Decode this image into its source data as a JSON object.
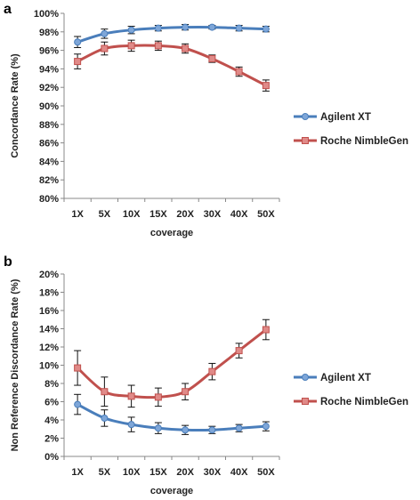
{
  "chart_data": [
    {
      "type": "line",
      "panel_label": "a",
      "categories": [
        "1X",
        "5X",
        "10X",
        "15X",
        "20X",
        "30X",
        "40X",
        "50X"
      ],
      "xlabel": "coverage",
      "ylabel": "Concordance Rate (%)",
      "ylim": [
        80,
        100
      ],
      "yticks": [
        80,
        82,
        84,
        86,
        88,
        90,
        92,
        94,
        96,
        98,
        100
      ],
      "ytick_format": "percent",
      "legend_position": "right",
      "series": [
        {
          "name": "Agilent XT",
          "color": "#4a7ebb",
          "marker": "circle",
          "values": [
            96.9,
            97.8,
            98.2,
            98.4,
            98.5,
            98.5,
            98.4,
            98.3
          ],
          "errors": [
            0.6,
            0.5,
            0.4,
            0.3,
            0.3,
            0.2,
            0.3,
            0.3
          ]
        },
        {
          "name": "Roche NimbleGen",
          "color": "#c0504d",
          "marker": "square",
          "values": [
            94.8,
            96.2,
            96.5,
            96.5,
            96.2,
            95.1,
            93.7,
            92.2
          ],
          "errors": [
            0.8,
            0.7,
            0.6,
            0.5,
            0.5,
            0.4,
            0.5,
            0.6
          ]
        }
      ]
    },
    {
      "type": "line",
      "panel_label": "b",
      "categories": [
        "1X",
        "5X",
        "10X",
        "15X",
        "20X",
        "30X",
        "40X",
        "50X"
      ],
      "xlabel": "coverage",
      "ylabel": "Non Reference Discordance Rate (%)",
      "ylim": [
        0,
        20
      ],
      "yticks": [
        0,
        2,
        4,
        6,
        8,
        10,
        12,
        14,
        16,
        18,
        20
      ],
      "ytick_format": "percent",
      "legend_position": "right",
      "series": [
        {
          "name": "Agilent XT",
          "color": "#4a7ebb",
          "marker": "circle",
          "values": [
            5.7,
            4.2,
            3.5,
            3.1,
            2.9,
            2.9,
            3.1,
            3.3
          ],
          "errors": [
            1.1,
            0.9,
            0.8,
            0.6,
            0.5,
            0.4,
            0.4,
            0.5
          ]
        },
        {
          "name": "Roche NimbleGen",
          "color": "#c0504d",
          "marker": "square",
          "values": [
            9.7,
            7.1,
            6.6,
            6.5,
            7.1,
            9.3,
            11.6,
            13.9
          ],
          "errors": [
            1.9,
            1.6,
            1.2,
            1.0,
            0.9,
            0.9,
            0.8,
            1.1
          ]
        }
      ]
    }
  ]
}
